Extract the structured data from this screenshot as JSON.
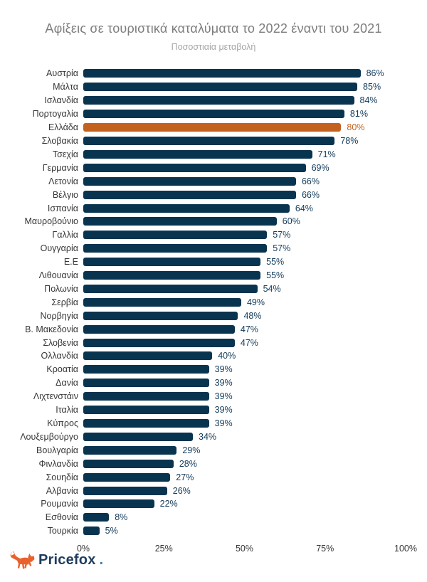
{
  "header": {
    "title": "Αφίξεις σε τουριστικά καταλύματα το 2022 έναντι του 2021",
    "subtitle": "Ποσοστιαία μεταβολή"
  },
  "chart_data": {
    "type": "bar",
    "orientation": "horizontal",
    "title": "Αφίξεις σε τουριστικά καταλύματα το 2022 έναντι του 2021",
    "subtitle": "Ποσοστιαία μεταβολή",
    "categories": [
      "Αυστρία",
      "Μάλτα",
      "Ισλανδία",
      "Πορτογαλία",
      "Ελλάδα",
      "Σλοβακία",
      "Τσεχία",
      "Γερμανία",
      "Λετονία",
      "Βέλγιο",
      "Ισπανία",
      "Μαυροβούνιο",
      "Γαλλία",
      "Ουγγαρία",
      "Ε.Ε",
      "Λιθουανία",
      "Πολωνία",
      "Σερβία",
      "Νορβηγία",
      "Β. Μακεδονία",
      "Σλοβενία",
      "Ολλανδία",
      "Κροατία",
      "Δανία",
      "Λιχτενστάιν",
      "Ιταλία",
      "Κύπρος",
      "Λουξεμβούργο",
      "Βουλγαρία",
      "Φινλανδία",
      "Σουηδία",
      "Αλβανία",
      "Ρουμανία",
      "Εσθονία",
      "Τουρκία"
    ],
    "values": [
      86,
      85,
      84,
      81,
      80,
      78,
      71,
      69,
      66,
      66,
      64,
      60,
      57,
      57,
      55,
      55,
      54,
      49,
      48,
      47,
      47,
      40,
      39,
      39,
      39,
      39,
      39,
      34,
      29,
      28,
      27,
      26,
      22,
      8,
      5
    ],
    "value_suffix": "%",
    "highlight_category": "Ελλάδα",
    "xlim": [
      0,
      100
    ],
    "x_ticks": [
      "0%",
      "25%",
      "50%",
      "75%",
      "100%"
    ],
    "x_tick_positions": [
      0,
      25,
      50,
      75,
      100
    ],
    "grid": false,
    "legend": false,
    "colors": {
      "bar": "#093450",
      "highlight_bar": "#c2621e",
      "value_label": "#123a5a",
      "highlight_value_label": "#c2621e",
      "category_label": "#373737",
      "axis_label": "#373737",
      "title": "#7d7d7d",
      "subtitle": "#a6a6a6"
    }
  },
  "footer": {
    "brand": "Pricefox",
    "brand_dot": ".",
    "fox_color": "#e8622d"
  }
}
